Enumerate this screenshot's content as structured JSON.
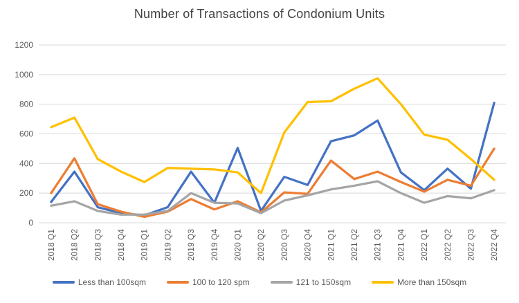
{
  "title": "Number of Transactions of Condonium Units",
  "chart_data": {
    "type": "line",
    "title": "Number of Transactions of Condonium Units",
    "categories": [
      "2018 Q1",
      "2018 Q2",
      "2018 Q3",
      "2018 Q4",
      "2019 Q1",
      "2019 Q2",
      "2019 Q3",
      "2019 Q4",
      "2020 Q1",
      "2020 Q2",
      "2020 Q3",
      "2020 Q4",
      "2021 Q1",
      "2021 Q2",
      "2021 Q3",
      "2021 Q4",
      "2022 Q1",
      "2022 Q2",
      "2022 Q3",
      "2022 Q4"
    ],
    "series": [
      {
        "name": "Less than 100sqm",
        "color": "#4472C4",
        "values": [
          140,
          345,
          105,
          65,
          50,
          105,
          345,
          135,
          505,
          80,
          310,
          255,
          550,
          590,
          690,
          340,
          220,
          365,
          230,
          810
        ]
      },
      {
        "name": "100 to 120 spm",
        "color": "#ED7D31",
        "values": [
          200,
          435,
          125,
          75,
          40,
          75,
          160,
          90,
          145,
          70,
          205,
          195,
          420,
          295,
          345,
          275,
          210,
          290,
          250,
          500
        ]
      },
      {
        "name": "121 to 150sqm",
        "color": "#A5A5A5",
        "values": [
          115,
          145,
          80,
          55,
          55,
          80,
          200,
          135,
          130,
          65,
          150,
          185,
          225,
          250,
          280,
          200,
          135,
          180,
          165,
          220
        ]
      },
      {
        "name": "More than 150sqm",
        "color": "#FFC000",
        "values": [
          645,
          710,
          430,
          345,
          275,
          370,
          365,
          360,
          340,
          200,
          610,
          815,
          820,
          905,
          975,
          800,
          595,
          560,
          430,
          290
        ]
      }
    ],
    "xlabel": "",
    "ylabel": "",
    "ylim": [
      0,
      1200
    ],
    "yticks": [
      0,
      200,
      400,
      600,
      800,
      1000,
      1200
    ],
    "grid": true,
    "legend_position": "bottom",
    "gridline_color": "#D9D9D9",
    "axis_label_color": "#595959",
    "title_color": "#404040"
  }
}
